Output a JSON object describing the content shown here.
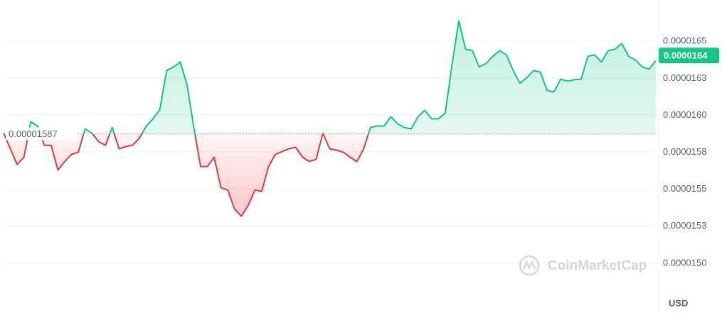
{
  "chart_data": {
    "type": "line",
    "values": [
      1.5875e-05,
      1.5769e-05,
      1.5663e-05,
      1.5712e-05,
      1.5952e-05,
      1.5923e-05,
      1.5793e-05,
      1.5793e-05,
      1.5625e-05,
      1.5683e-05,
      1.5731e-05,
      1.5745e-05,
      1.5904e-05,
      1.5875e-05,
      1.5817e-05,
      1.5793e-05,
      1.5913e-05,
      1.5769e-05,
      1.5784e-05,
      1.5793e-05,
      1.5841e-05,
      1.5923e-05,
      1.5971e-05,
      1.6034e-05,
      1.6298e-05,
      1.6322e-05,
      1.6356e-05,
      1.6202e-05,
      1.5913e-05,
      1.5649e-05,
      1.5649e-05,
      1.5712e-05,
      1.5505e-05,
      1.549e-05,
      1.5361e-05,
      1.5313e-05,
      1.5385e-05,
      1.549e-05,
      1.5481e-05,
      1.5649e-05,
      1.5731e-05,
      1.575e-05,
      1.5769e-05,
      1.5779e-05,
      1.5712e-05,
      1.5683e-05,
      1.5697e-05,
      1.5875e-05,
      1.5769e-05,
      1.576e-05,
      1.5745e-05,
      1.5712e-05,
      1.5683e-05,
      1.5769e-05,
      1.5913e-05,
      1.5923e-05,
      1.5923e-05,
      1.5986e-05,
      1.5938e-05,
      1.5913e-05,
      1.5904e-05,
      1.5986e-05,
      1.6029e-05,
      1.5971e-05,
      1.5971e-05,
      1.601e-05,
      1.6337e-05,
      1.6635e-05,
      1.6442e-05,
      1.6433e-05,
      1.6322e-05,
      1.6346e-05,
      1.6394e-05,
      1.6433e-05,
      1.6404e-05,
      1.6298e-05,
      1.6212e-05,
      1.625e-05,
      1.6298e-05,
      1.6288e-05,
      1.6163e-05,
      1.6154e-05,
      1.624e-05,
      1.6226e-05,
      1.6236e-05,
      1.624e-05,
      1.6394e-05,
      1.6404e-05,
      1.6356e-05,
      1.6433e-05,
      1.6442e-05,
      1.6481e-05,
      1.6394e-05,
      1.637e-05,
      1.6322e-05,
      1.6308e-05,
      1.6365e-05
    ],
    "baseline": 1.587e-05,
    "current_price": 1.64e-05,
    "color_up": "#16c784",
    "color_down": "#ea3943",
    "ylim": [
      1.47e-05,
      1.675e-05
    ],
    "yticks": [
      1.65e-05,
      {
        "value": 1.625e-05,
        "label": "0.0000163"
      },
      {
        "value": 1.6e-05,
        "label": "0.0000160"
      },
      {
        "value": 1.575e-05,
        "label": "0.0000158"
      },
      1.55e-05,
      {
        "value": 1.525e-05,
        "label": "0.0000153"
      },
      {
        "value": 1.5e-05,
        "label": "0.0000150"
      }
    ],
    "grid": true,
    "unit": "USD",
    "watermark": "CoinMarketCap"
  }
}
